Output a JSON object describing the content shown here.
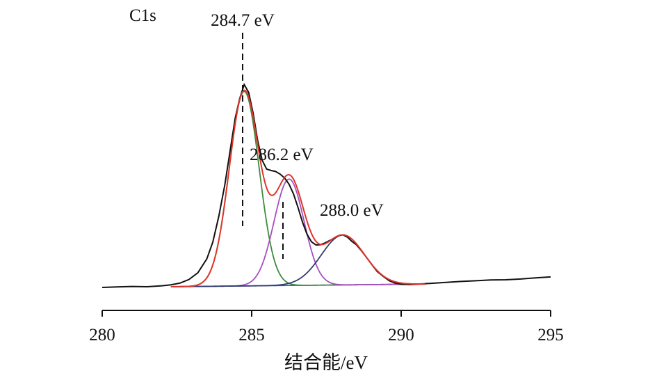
{
  "chart_data": {
    "type": "line",
    "title": "C1s",
    "xlabel": "结合能/eV",
    "ylabel": "",
    "xlim": [
      280,
      295
    ],
    "ylim": [
      0,
      1
    ],
    "x_ticks": [
      "280",
      "285",
      "290",
      "295"
    ],
    "grid": false,
    "legend": "none",
    "annotations": [
      {
        "text": "284.7 eV",
        "x": 284.7
      },
      {
        "text": "286.2 eV",
        "x": 286.2
      },
      {
        "text": "288.0 eV",
        "x": 288.0
      }
    ],
    "peaks": [
      {
        "center": 284.75,
        "sigma": 0.5,
        "amplitude": 0.81,
        "color": "#3e8a3e"
      },
      {
        "center": 286.25,
        "sigma": 0.5,
        "amplitude": 0.443,
        "color": "#a64fc0"
      },
      {
        "center": 288.05,
        "sigma": 0.72,
        "amplitude": 0.208,
        "color": "#2f3d6c"
      }
    ],
    "fit_range": [
      282.3,
      290.8
    ],
    "series": [
      {
        "kind": "raw",
        "color": "#111111",
        "x": [
          280.0,
          280.5,
          281.0,
          281.5,
          282.0,
          282.3,
          282.6,
          282.9,
          283.2,
          283.5,
          283.7,
          283.9,
          284.1,
          284.3,
          284.45,
          284.6,
          284.75,
          284.9,
          285.05,
          285.2,
          285.35,
          285.5,
          285.65,
          285.8,
          285.95,
          286.1,
          286.25,
          286.4,
          286.55,
          286.7,
          286.85,
          287.0,
          287.15,
          287.3,
          287.45,
          287.6,
          287.75,
          287.9,
          288.05,
          288.2,
          288.35,
          288.5,
          288.65,
          288.8,
          289.0,
          289.2,
          289.4,
          289.6,
          289.8,
          290.0,
          290.3,
          290.6,
          291.0,
          291.5,
          292.0,
          292.5,
          293.0,
          293.5,
          294.0,
          294.5,
          295.0
        ],
        "y": [
          0.0,
          0.002,
          0.004,
          0.003,
          0.007,
          0.011,
          0.018,
          0.033,
          0.061,
          0.119,
          0.189,
          0.296,
          0.426,
          0.586,
          0.706,
          0.787,
          0.845,
          0.812,
          0.725,
          0.612,
          0.53,
          0.493,
          0.487,
          0.483,
          0.472,
          0.456,
          0.43,
          0.389,
          0.333,
          0.272,
          0.222,
          0.19,
          0.177,
          0.178,
          0.185,
          0.195,
          0.204,
          0.215,
          0.219,
          0.21,
          0.192,
          0.178,
          0.156,
          0.132,
          0.098,
          0.066,
          0.046,
          0.028,
          0.018,
          0.013,
          0.012,
          0.014,
          0.017,
          0.021,
          0.025,
          0.028,
          0.031,
          0.032,
          0.035,
          0.04,
          0.044
        ]
      }
    ]
  }
}
